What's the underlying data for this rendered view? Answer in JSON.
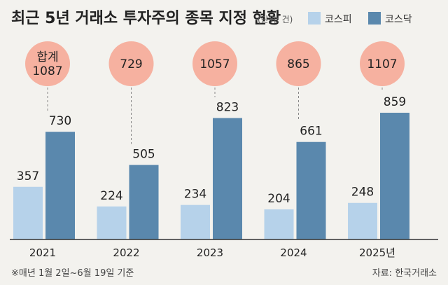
{
  "header": {
    "title": "최근 5년 거래소 투자주의 종목 지정 현황",
    "unit": "(단위: 건)"
  },
  "total_label": "합계",
  "footer": {
    "note": "※매년 1월 2일~6월 19일 기준",
    "source": "자료: 한국거래소"
  },
  "colors": {
    "kospi": "#b6d2ea",
    "kosdaq": "#5a88ad",
    "bubble": "#f6b1a0",
    "background": "#f3f2ee"
  },
  "chart_data": {
    "type": "bar",
    "categories": [
      "2021",
      "2022",
      "2023",
      "2024",
      "2025년"
    ],
    "series": [
      {
        "name": "코스피",
        "values": [
          357,
          224,
          234,
          204,
          248
        ]
      },
      {
        "name": "코스닥",
        "values": [
          730,
          505,
          823,
          661,
          859
        ]
      }
    ],
    "totals": [
      1087,
      729,
      1057,
      865,
      1107
    ],
    "ylim": [
      0,
      1200
    ],
    "legend": "top-right",
    "grid": false
  }
}
